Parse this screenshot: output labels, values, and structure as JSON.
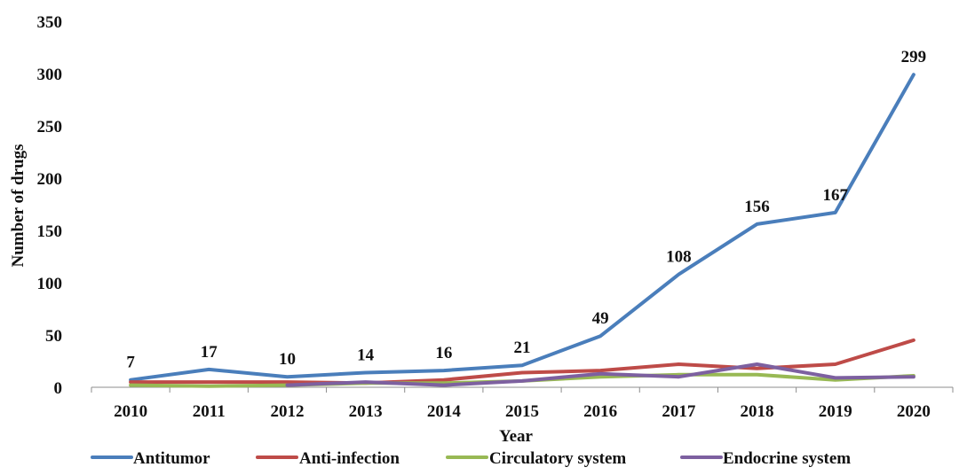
{
  "chart_data": {
    "type": "line",
    "title": "",
    "xlabel": "Year",
    "ylabel": "Number of drugs",
    "ylim": [
      0,
      350
    ],
    "yticks": [
      0,
      50,
      100,
      150,
      200,
      250,
      300,
      350
    ],
    "grid": false,
    "legend_position": "bottom",
    "categories": [
      "2010",
      "2011",
      "2012",
      "2013",
      "2014",
      "2015",
      "2016",
      "2017",
      "2018",
      "2019",
      "2020"
    ],
    "series": [
      {
        "name": "Antitumor",
        "color": "#4a7ebb",
        "values": [
          7,
          17,
          10,
          14,
          16,
          21,
          49,
          108,
          156,
          167,
          299
        ],
        "data_labels": [
          7,
          17,
          10,
          14,
          16,
          21,
          49,
          108,
          156,
          167,
          299
        ]
      },
      {
        "name": "Anti-infection",
        "color": "#be4b48",
        "values": [
          5,
          5,
          5,
          4,
          7,
          14,
          16,
          22,
          18,
          22,
          45
        ]
      },
      {
        "name": "Circulatory system",
        "color": "#98b954",
        "values": [
          2,
          1,
          2,
          4,
          4,
          6,
          10,
          12,
          12,
          7,
          11
        ]
      },
      {
        "name": "Endocrine system",
        "color": "#7d60a0",
        "values": [
          null,
          null,
          2,
          5,
          2,
          6,
          13,
          10,
          22,
          9,
          10
        ]
      }
    ]
  }
}
